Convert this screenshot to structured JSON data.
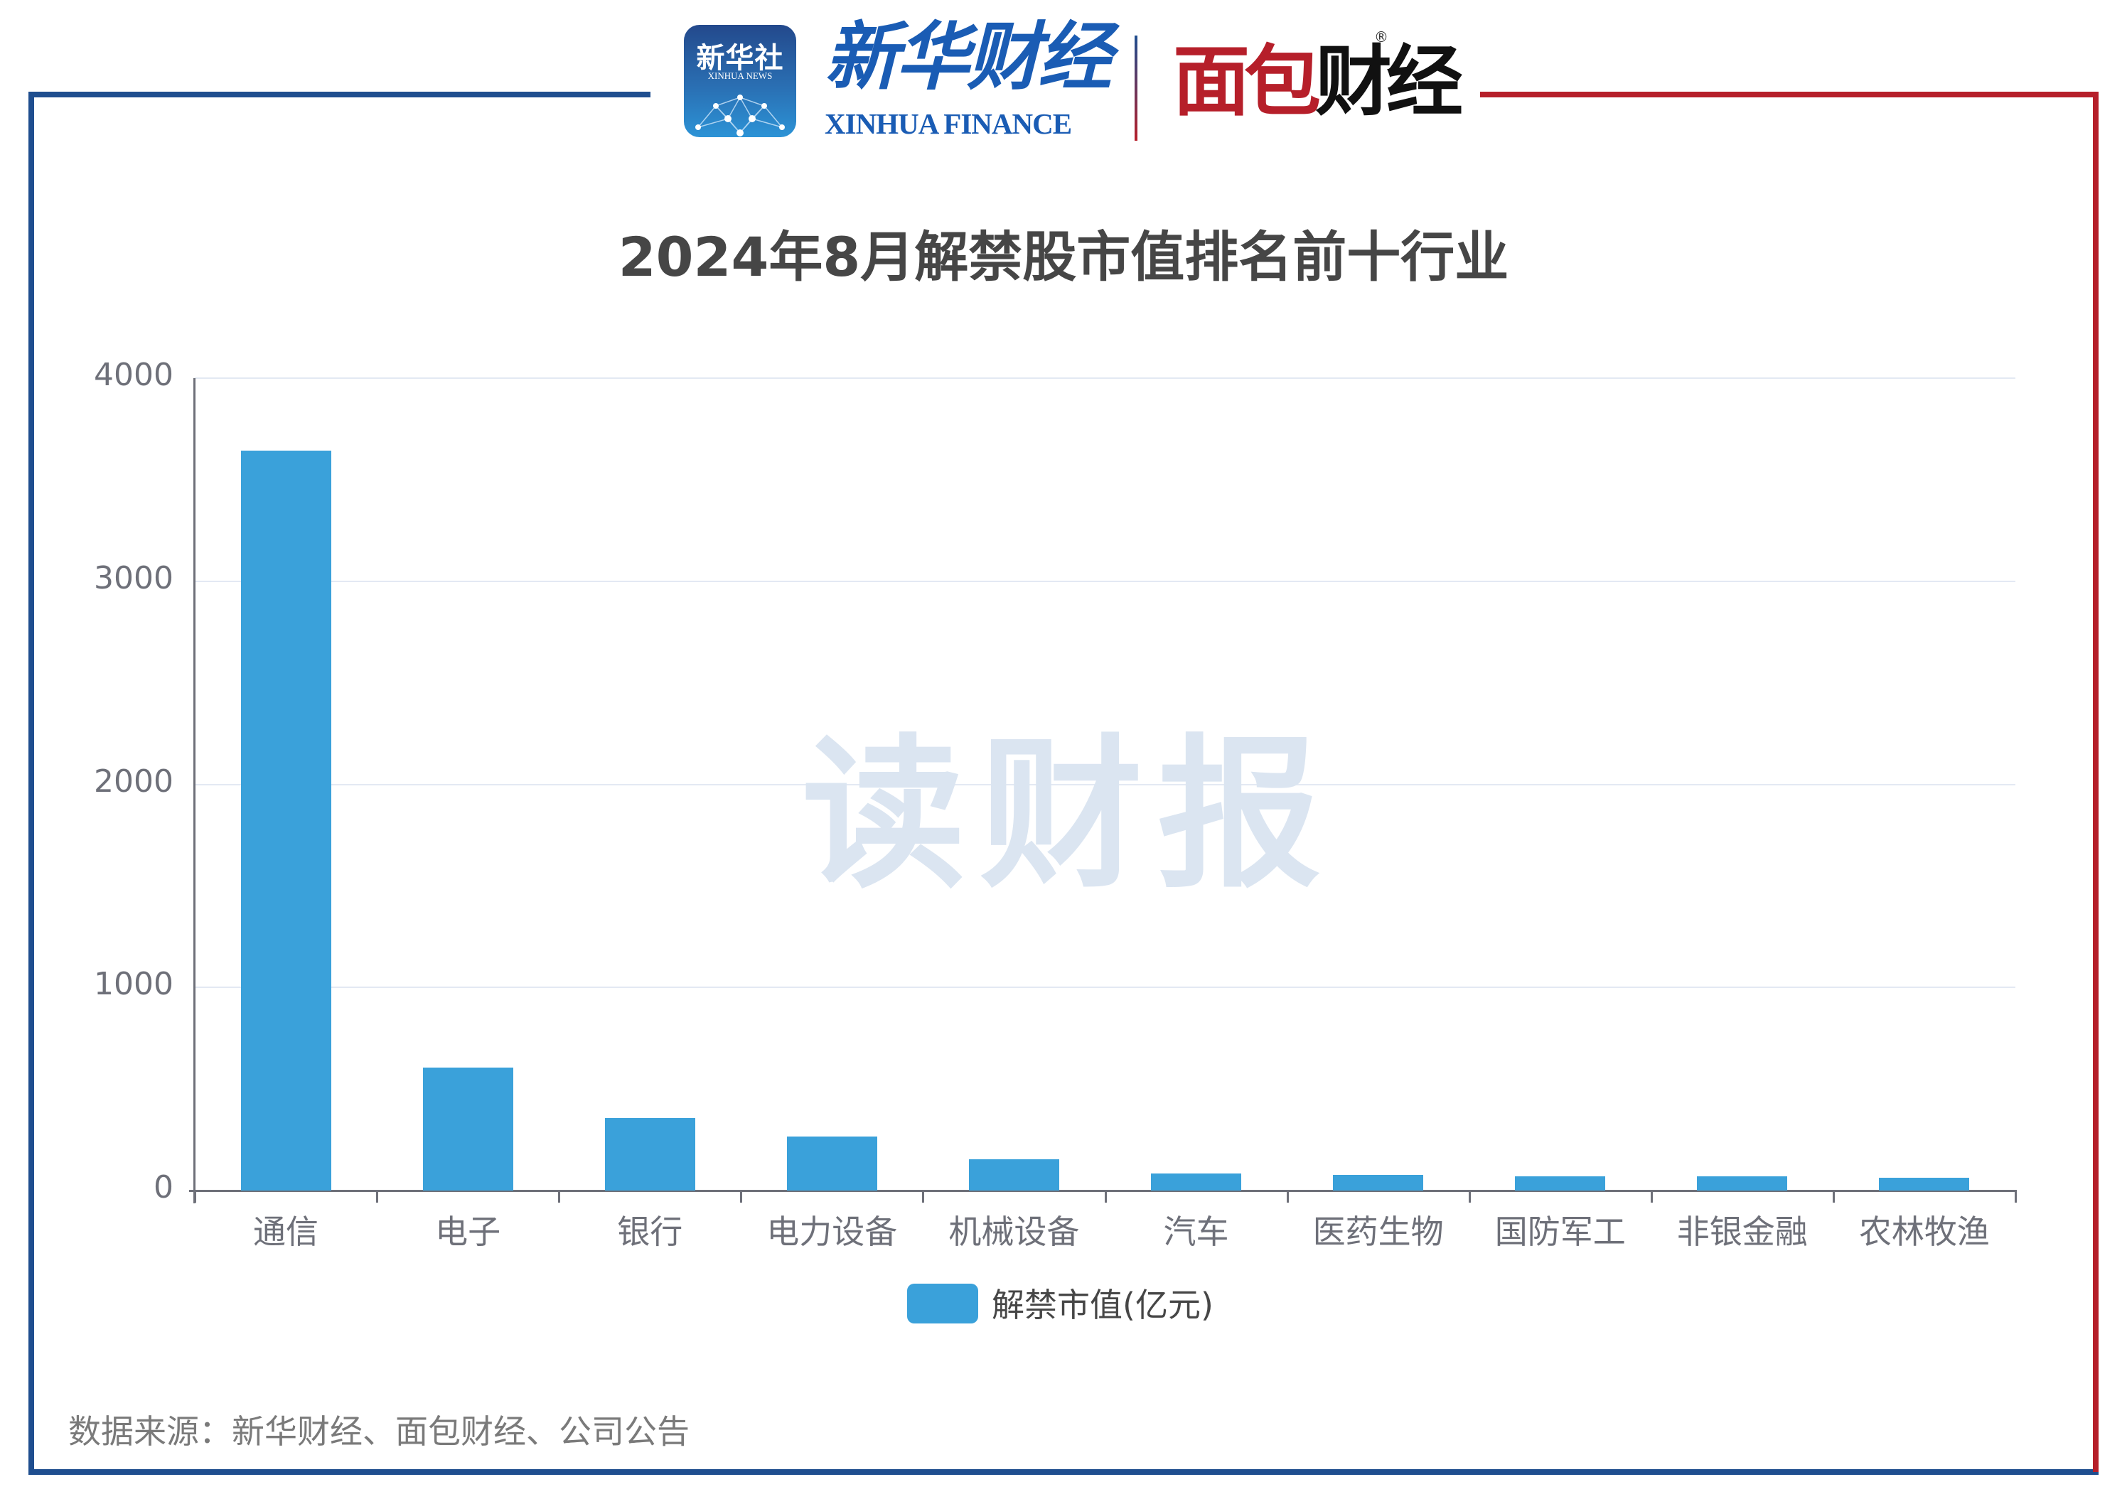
{
  "header": {
    "logo_xinhua_icon": {
      "cn": "新华社",
      "en": "XINHUA NEWS"
    },
    "logo_xinhua_finance": {
      "cn": "新华财经",
      "en": "XINHUA FINANCE"
    },
    "logo_mianbao": {
      "part_red": "面包",
      "part_black": "财经",
      "registered": "®"
    }
  },
  "watermark": "读财报",
  "footer": {
    "source": "数据来源：新华财经、面包财经、公司公告"
  },
  "colors": {
    "bar": "#3aa1da",
    "frame_blue": "#1f4e8f",
    "frame_red": "#b61f2a",
    "title": "#464646",
    "axis_text": "#6e7079",
    "gridline": "#e3e9f3"
  },
  "chart_data": {
    "type": "bar",
    "title": "2024年8月解禁股市值排名前十行业",
    "xlabel": "",
    "ylabel": "",
    "categories": [
      "通信",
      "电子",
      "银行",
      "电力设备",
      "机械设备",
      "汽车",
      "医药生物",
      "国防军工",
      "非银金融",
      "农林牧渔"
    ],
    "series": [
      {
        "name": "解禁市值(亿元)",
        "values": [
          3643,
          605,
          357,
          266,
          154,
          85,
          78,
          71,
          71,
          62
        ]
      }
    ],
    "yticks": [
      "0",
      "1000",
      "2000",
      "3000",
      "4000"
    ],
    "ylim": [
      0,
      4000
    ],
    "grid": true,
    "legend_position": "bottom-center"
  }
}
